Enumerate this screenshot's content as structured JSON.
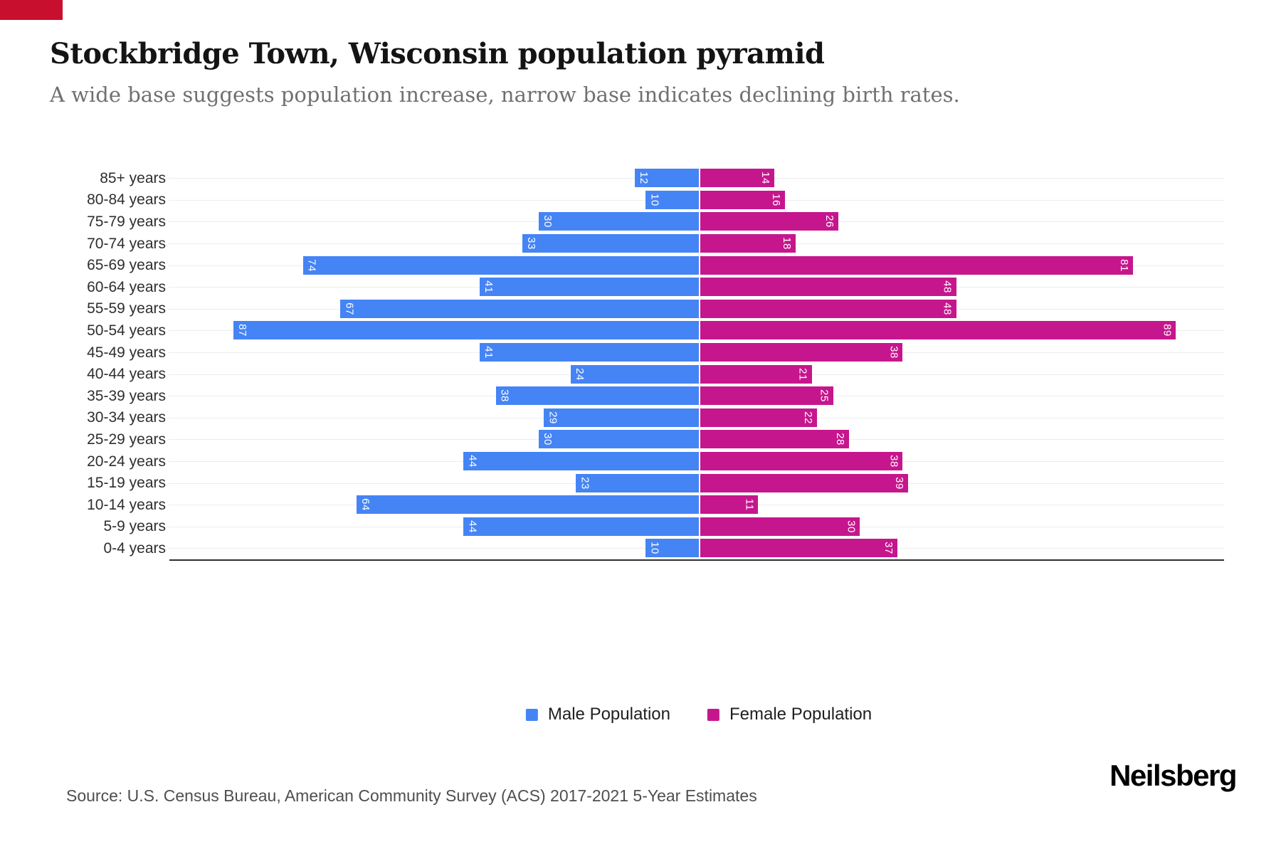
{
  "header": {
    "title": "Stockbridge Town, Wisconsin population pyramid",
    "subtitle": "A wide base suggests population increase, narrow base indicates declining birth rates."
  },
  "colors": {
    "male": "#4584F4",
    "female": "#C6168D",
    "corner_accent": "#C8102E",
    "gridline": "#EDEDED",
    "axis_line": "#2F2F2F"
  },
  "chart_data": {
    "type": "bar",
    "subtype": "population-pyramid",
    "orientation": "horizontal-diverging",
    "categories": [
      "85+ years",
      "80-84 years",
      "75-79 years",
      "70-74 years",
      "65-69 years",
      "60-64 years",
      "55-59 years",
      "50-54 years",
      "45-49 years",
      "40-44 years",
      "35-39 years",
      "30-34 years",
      "25-29 years",
      "20-24 years",
      "15-19 years",
      "10-14 years",
      "5-9 years",
      "0-4 years"
    ],
    "series": [
      {
        "name": "Male Population",
        "color": "#4584F4",
        "values": [
          12,
          10,
          30,
          33,
          74,
          41,
          67,
          87,
          41,
          24,
          38,
          29,
          30,
          44,
          23,
          64,
          44,
          10
        ]
      },
      {
        "name": "Female Population",
        "color": "#C6168D",
        "values": [
          14,
          16,
          26,
          18,
          81,
          48,
          48,
          89,
          38,
          21,
          25,
          22,
          28,
          38,
          39,
          11,
          30,
          37
        ]
      }
    ],
    "x_axis_max_per_side": 98,
    "value_labels": "inside-bar-outer-end-rotated-90",
    "grid": "horizontal-row-lines",
    "legend_position": "bottom-center",
    "x_tick_labels_shown": false
  },
  "footer": {
    "source": "Source: U.S. Census Bureau, American Community Survey (ACS) 2017-2021 5-Year Estimates",
    "brand": "Neilsberg"
  }
}
